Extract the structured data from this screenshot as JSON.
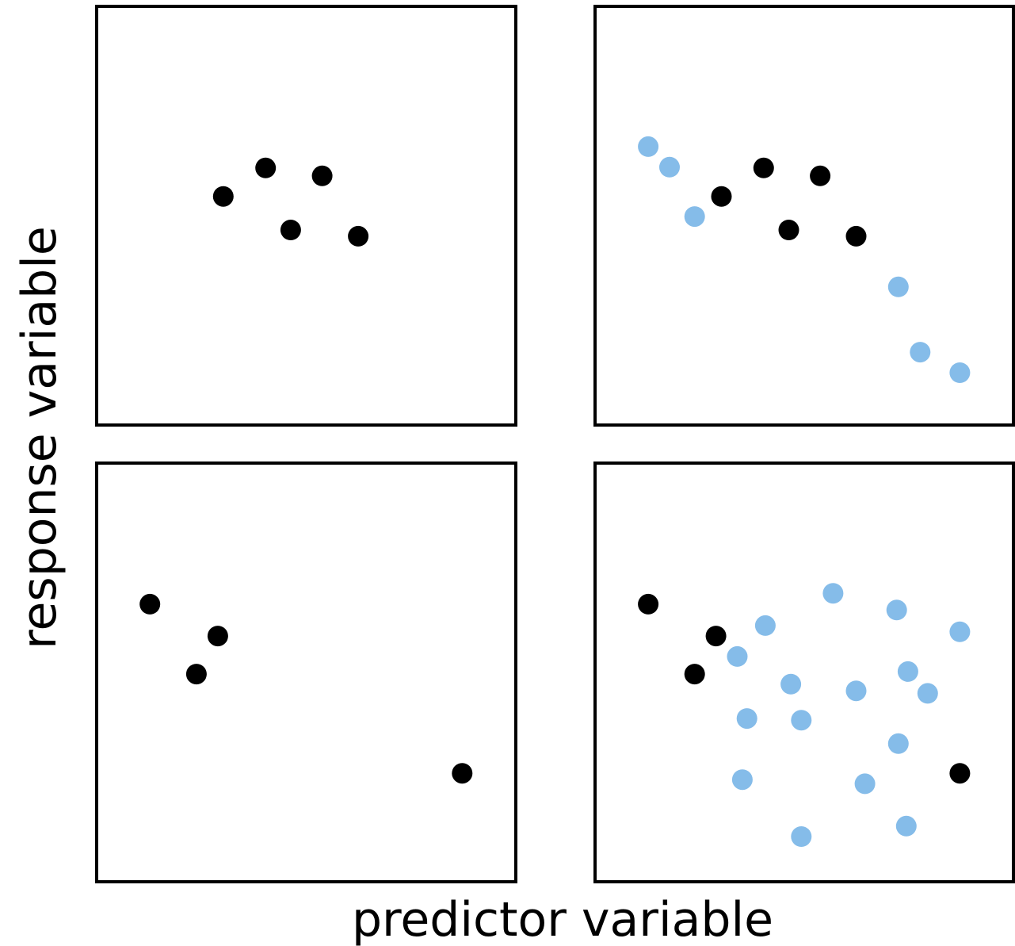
{
  "xlabel": "predictor variable",
  "ylabel": "response variable",
  "colors": {
    "observed": "#000000",
    "unobserved": "#85bce9",
    "frame": "#000000"
  },
  "chart_data": [
    {
      "type": "scatter",
      "position": "top-left",
      "xlim": [
        0,
        100
      ],
      "ylim": [
        0,
        100
      ],
      "series": [
        {
          "group": "observed",
          "points": [
            [
              30.2,
              54.6
            ],
            [
              40.3,
              61.4
            ],
            [
              46.3,
              46.6
            ],
            [
              53.8,
              59.5
            ],
            [
              62.4,
              45.1
            ]
          ]
        }
      ]
    },
    {
      "type": "scatter",
      "position": "top-right",
      "xlim": [
        0,
        100
      ],
      "ylim": [
        0,
        100
      ],
      "series": [
        {
          "group": "observed",
          "points": [
            [
              30.2,
              54.6
            ],
            [
              40.3,
              61.4
            ],
            [
              46.3,
              46.6
            ],
            [
              53.8,
              59.5
            ],
            [
              62.4,
              45.1
            ]
          ]
        },
        {
          "group": "unobserved",
          "points": [
            [
              12.7,
              66.5
            ],
            [
              17.8,
              61.6
            ],
            [
              23.8,
              49.8
            ],
            [
              72.5,
              33.0
            ],
            [
              77.7,
              17.4
            ],
            [
              87.2,
              12.5
            ]
          ]
        }
      ]
    },
    {
      "type": "scatter",
      "position": "bottom-left",
      "xlim": [
        0,
        100
      ],
      "ylim": [
        0,
        100
      ],
      "series": [
        {
          "group": "observed",
          "points": [
            [
              12.7,
              66.3
            ],
            [
              28.9,
              58.7
            ],
            [
              23.8,
              49.6
            ],
            [
              87.2,
              25.9
            ]
          ]
        }
      ]
    },
    {
      "type": "scatter",
      "position": "bottom-right",
      "xlim": [
        0,
        100
      ],
      "ylim": [
        0,
        100
      ],
      "series": [
        {
          "group": "observed",
          "points": [
            [
              12.7,
              66.3
            ],
            [
              28.9,
              58.7
            ],
            [
              23.8,
              49.6
            ],
            [
              87.2,
              25.9
            ]
          ]
        },
        {
          "group": "unobserved",
          "points": [
            [
              56.9,
              68.9
            ],
            [
              72.1,
              64.9
            ],
            [
              40.7,
              61.2
            ],
            [
              87.2,
              59.7
            ],
            [
              34.0,
              53.8
            ],
            [
              74.8,
              50.2
            ],
            [
              46.8,
              47.2
            ],
            [
              62.4,
              45.6
            ],
            [
              79.5,
              45.0
            ],
            [
              36.3,
              39.0
            ],
            [
              49.3,
              38.6
            ],
            [
              72.5,
              33.0
            ],
            [
              35.2,
              24.4
            ],
            [
              64.5,
              23.4
            ],
            [
              74.4,
              13.3
            ],
            [
              49.3,
              10.8
            ]
          ]
        }
      ]
    }
  ]
}
